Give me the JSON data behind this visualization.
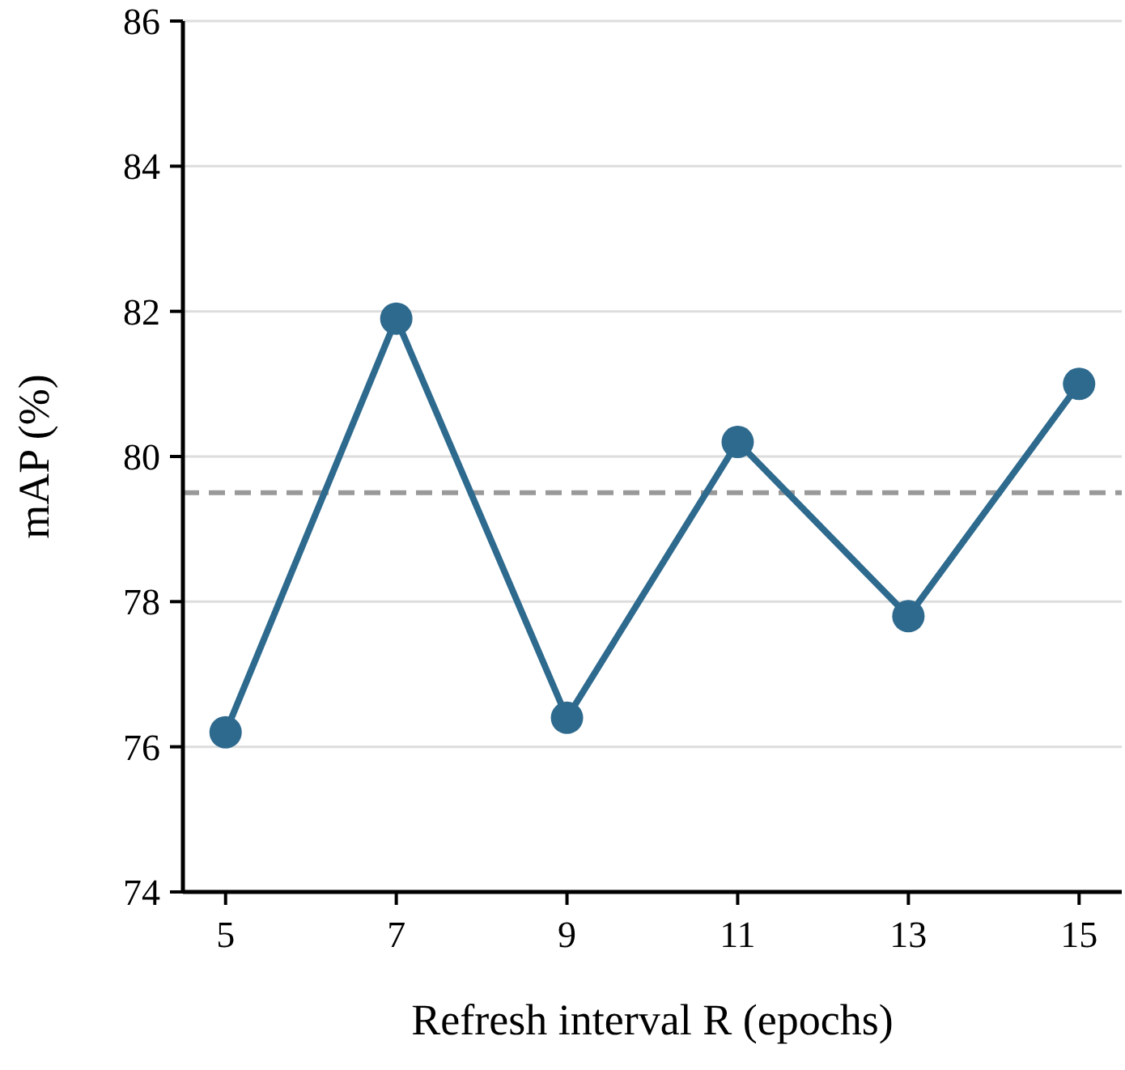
{
  "chart_data": {
    "type": "line",
    "xlabel": "Refresh interval R (epochs)",
    "ylabel": "mAP (%)",
    "x": [
      5,
      7,
      9,
      11,
      13,
      15
    ],
    "series": [
      {
        "color": "#2e6a8e",
        "values": [
          76.2,
          81.9,
          76.4,
          80.2,
          77.8,
          81.0
        ]
      }
    ],
    "xlim": [
      4.5,
      15.5
    ],
    "xticks": [
      5,
      7,
      9,
      11,
      13,
      15
    ],
    "ylim": [
      74,
      86
    ],
    "yticks": [
      74,
      76,
      78,
      80,
      82,
      84,
      86
    ],
    "grid": "y",
    "marker": "circle",
    "line_style": "solid",
    "ref_lines": [
      {
        "axis": "y",
        "value": 79.5,
        "color": "#999999",
        "line_style": "dashed"
      }
    ]
  }
}
